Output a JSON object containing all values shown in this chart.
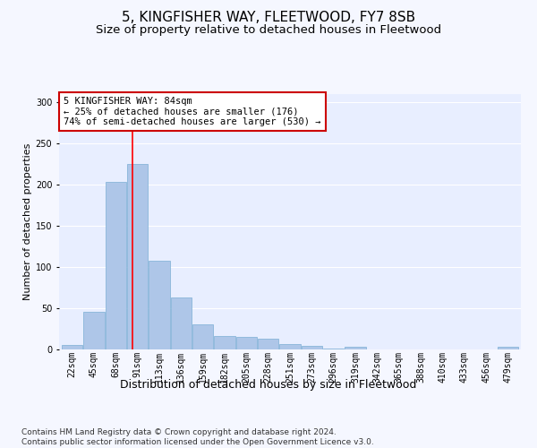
{
  "title1": "5, KINGFISHER WAY, FLEETWOOD, FY7 8SB",
  "title2": "Size of property relative to detached houses in Fleetwood",
  "xlabel": "Distribution of detached houses by size in Fleetwood",
  "ylabel": "Number of detached properties",
  "bar_labels": [
    "22sqm",
    "45sqm",
    "68sqm",
    "91sqm",
    "113sqm",
    "136sqm",
    "159sqm",
    "182sqm",
    "205sqm",
    "228sqm",
    "251sqm",
    "273sqm",
    "296sqm",
    "319sqm",
    "342sqm",
    "365sqm",
    "388sqm",
    "410sqm",
    "433sqm",
    "456sqm",
    "479sqm"
  ],
  "bar_values": [
    5,
    46,
    203,
    225,
    108,
    63,
    30,
    16,
    15,
    13,
    6,
    4,
    1,
    3,
    0,
    0,
    0,
    0,
    0,
    0,
    3
  ],
  "bar_color": "#aec6e8",
  "bar_edgecolor": "#7bafd4",
  "background_color": "#e8eeff",
  "grid_color": "#ffffff",
  "red_line_x": 2.77,
  "annotation_text": "5 KINGFISHER WAY: 84sqm\n← 25% of detached houses are smaller (176)\n74% of semi-detached houses are larger (530) →",
  "annotation_box_facecolor": "#ffffff",
  "annotation_box_edgecolor": "#cc0000",
  "footer_text": "Contains HM Land Registry data © Crown copyright and database right 2024.\nContains public sector information licensed under the Open Government Licence v3.0.",
  "ylim": [
    0,
    310
  ],
  "title1_fontsize": 11,
  "title2_fontsize": 9.5,
  "xlabel_fontsize": 9,
  "ylabel_fontsize": 8,
  "tick_fontsize": 7,
  "footer_fontsize": 6.5,
  "fig_bg_color": "#f5f7ff"
}
